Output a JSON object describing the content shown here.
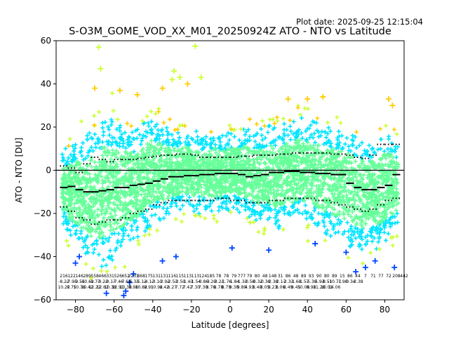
{
  "header": {
    "plot_date": "Plot date: 2025-09-25 12:15:04",
    "title": "S-O3M_GOME_VOD_XX_M01_20250924Z ATO - NTO vs Latitude"
  },
  "chart_data": {
    "type": "scatter",
    "title": "S-O3M_GOME_VOD_XX_M01_20250924Z ATO - NTO vs Latitude",
    "xlabel": "Latitude [degrees]",
    "ylabel": "ATO - NTO [DU]",
    "xlim": [
      -90,
      90
    ],
    "ylim": [
      -60,
      60
    ],
    "xticks": [
      -80,
      -60,
      -40,
      -20,
      0,
      20,
      40,
      60,
      80
    ],
    "yticks": [
      -60,
      -40,
      -20,
      0,
      20,
      40,
      60
    ],
    "grid": false,
    "zero_line": 0,
    "colors": {
      "dense": "#66ff99",
      "mid": "#00e5ff",
      "outer": "#ccff33",
      "warm": "#ffcc00",
      "sparse": "#0044ff",
      "lines": "#000000"
    },
    "bin_latitudes": [
      -86,
      -82,
      -78,
      -74,
      -70,
      -66,
      -62,
      -58,
      -54,
      -50,
      -46,
      -42,
      -38,
      -34,
      -30,
      -26,
      -22,
      -18,
      -14,
      -10,
      -6,
      -2,
      2,
      6,
      10,
      14,
      18,
      22,
      26,
      30,
      34,
      38,
      42,
      46,
      50,
      54,
      58,
      62,
      66,
      70,
      74,
      78,
      82,
      86
    ],
    "bin_mean": [
      -8,
      -7.5,
      -9,
      -10,
      -10,
      -9.5,
      -9,
      -8,
      -8,
      -7,
      -6.5,
      -6,
      -5,
      -4,
      -3,
      -3,
      -2.5,
      -2.5,
      -2,
      -2,
      -1.5,
      -1.5,
      -1.5,
      -2,
      -3,
      -2.5,
      -2,
      -1,
      -1,
      -0.5,
      -0.5,
      -1,
      -1,
      -1.5,
      -1.5,
      -2,
      -2,
      -6,
      -8,
      -9,
      -9,
      -8,
      -7,
      -2
    ],
    "bin_upper": [
      2,
      1,
      -1,
      3,
      6,
      5,
      4,
      5,
      5,
      5,
      5.5,
      6,
      6.5,
      7,
      7,
      7.5,
      7.5,
      7,
      6,
      6,
      6,
      6,
      6,
      6.5,
      6.5,
      7,
      7,
      7,
      7.5,
      7.5,
      8,
      8,
      8,
      8,
      8,
      7.5,
      7.5,
      7,
      6,
      5.5,
      7,
      12,
      12,
      12
    ],
    "bin_lower": [
      -17,
      -19,
      -22,
      -23,
      -25,
      -24,
      -23,
      -23,
      -22,
      -20,
      -19,
      -18,
      -16,
      -15,
      -14,
      -14,
      -14,
      -14,
      -14,
      -14,
      -13,
      -13,
      -14,
      -14,
      -15,
      -15,
      -15,
      -14,
      -14,
      -13,
      -13,
      -13,
      -13,
      -14,
      -14,
      -15,
      -16,
      -17,
      -18,
      -19,
      -18,
      -16,
      -14,
      -13
    ],
    "scatter_envelope": {
      "latitudes": [
        -88,
        -84,
        -80,
        -76,
        -72,
        -68,
        -64,
        -60,
        -56,
        -52,
        -48,
        -44,
        -40,
        -36,
        -32,
        -28,
        -24,
        -20,
        -16,
        -12,
        -8,
        -4,
        0,
        4,
        8,
        12,
        16,
        20,
        24,
        28,
        32,
        36,
        40,
        44,
        48,
        52,
        56,
        60,
        64,
        68,
        72,
        76,
        80,
        84,
        88
      ],
      "upper": [
        12,
        15,
        20,
        22,
        25,
        30,
        35,
        30,
        28,
        25,
        25,
        28,
        30,
        26,
        24,
        22,
        22,
        24,
        22,
        20,
        22,
        20,
        22,
        22,
        24,
        22,
        24,
        26,
        26,
        28,
        28,
        30,
        28,
        28,
        26,
        26,
        26,
        26,
        24,
        22,
        20,
        22,
        24,
        22,
        16
      ],
      "lower": [
        -25,
        -35,
        -40,
        -45,
        -50,
        -55,
        -52,
        -50,
        -45,
        -40,
        -38,
        -34,
        -30,
        -28,
        -26,
        -24,
        -22,
        -24,
        -24,
        -24,
        -24,
        -24,
        -22,
        -24,
        -26,
        -28,
        -30,
        -30,
        -32,
        -32,
        -30,
        -28,
        -30,
        -32,
        -34,
        -36,
        -38,
        -40,
        -42,
        -44,
        -42,
        -42,
        -40,
        -35,
        -30
      ]
    },
    "outliers": [
      {
        "x": -68,
        "y": 57
      },
      {
        "x": -67,
        "y": 47
      },
      {
        "x": -18,
        "y": 57.5
      },
      {
        "x": -29,
        "y": 46
      },
      {
        "x": -30,
        "y": 42
      },
      {
        "x": -70,
        "y": 38
      },
      {
        "x": -57,
        "y": 37
      },
      {
        "x": -48,
        "y": 35
      },
      {
        "x": -35,
        "y": 38
      },
      {
        "x": -22,
        "y": 40
      },
      {
        "x": -15,
        "y": 43
      },
      {
        "x": -26,
        "y": 43
      },
      {
        "x": 30,
        "y": 33
      },
      {
        "x": 40,
        "y": 33
      },
      {
        "x": 48,
        "y": 34
      },
      {
        "x": 82,
        "y": 33
      },
      {
        "x": 84,
        "y": 30
      },
      {
        "x": -55,
        "y": -58
      },
      {
        "x": -54,
        "y": -56
      },
      {
        "x": -50,
        "y": -48
      },
      {
        "x": -52,
        "y": -52
      },
      {
        "x": -64,
        "y": -57
      },
      {
        "x": -80,
        "y": -43
      },
      {
        "x": -78,
        "y": -40
      },
      {
        "x": 65,
        "y": -47
      },
      {
        "x": 70,
        "y": -45
      },
      {
        "x": 85,
        "y": -45
      },
      {
        "x": 20,
        "y": -37
      },
      {
        "x": 44,
        "y": -34
      },
      {
        "x": -28,
        "y": -40
      },
      {
        "x": 1,
        "y": -36
      },
      {
        "x": 60,
        "y": -38
      },
      {
        "x": -35,
        "y": -42
      },
      {
        "x": 75,
        "y": -42
      }
    ],
    "stats_rows": [
      [
        "216",
        "122",
        "146",
        "289",
        "558",
        "466",
        "331",
        "526",
        "652",
        "2231",
        "868",
        "175",
        "131",
        "131",
        "116",
        "115",
        "113",
        "113",
        "124",
        "185",
        "78",
        "78",
        "79",
        "777",
        "79",
        "80",
        "48",
        "148",
        "31",
        "86",
        "48",
        "89",
        "93",
        "90",
        "80",
        "89",
        "15",
        "86",
        "44",
        "7",
        "71",
        "77",
        "72",
        "208",
        "442"
      ],
      [
        "-8.22",
        "-7.95",
        "-9.56",
        "-10.62",
        "-9.77",
        "-9.22",
        "-9.17",
        "-7.46",
        "-7.65",
        "-6.33",
        "-5.12",
        "-4.12",
        "-3.10",
        "-2.92",
        "-2.53",
        "-2.50",
        "-1.43",
        "-1.54",
        "-0.86",
        "-3.29",
        "-3.21",
        "-1.76",
        "-1.84",
        "-1.33",
        "-0.58",
        "-0.32",
        "-0.38",
        "-2.38",
        "-2.17",
        "-2.33",
        "-1.68",
        "-1.57",
        "-5.39",
        "-5.93",
        "-8.51",
        "-10.71",
        "-7.90",
        "-0.34",
        "-2.38",
        "",
        "",
        "",
        "",
        "",
        ""
      ],
      [
        "10.27",
        "8.75",
        "10.76",
        "10.42",
        "12.22",
        "12.62",
        "10.38",
        "12.91",
        "10.38",
        "8.98",
        "10.82",
        "8.91",
        "10.92",
        "8.42",
        "6.27",
        "7.72",
        "7.42",
        "7.30",
        "7.30",
        "8.76",
        "8.78",
        "8.79",
        "9.38",
        "9.89",
        "4.93",
        "8.40",
        "8.05",
        "8.23",
        "8.06",
        "8.49",
        "9.45",
        "10.06",
        "8.98",
        "11.28",
        "10.01",
        "14.06",
        "",
        "",
        "",
        "",
        "",
        "",
        "",
        "",
        ""
      ]
    ]
  }
}
